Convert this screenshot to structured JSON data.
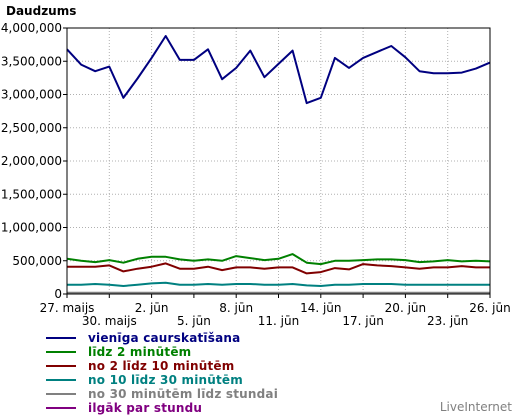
{
  "chart_data": {
    "type": "line",
    "title": "Daudzums",
    "ylim": [
      0,
      4000000
    ],
    "y_ticks": [
      0,
      500000,
      1000000,
      1500000,
      2000000,
      2500000,
      3000000,
      3500000,
      4000000
    ],
    "y_tick_labels": [
      "0",
      "500,000",
      "1,000,000",
      "1,500,000",
      "2,000,000",
      "2,500,000",
      "3,000,000",
      "3,500,000",
      "4,000,000"
    ],
    "x": [
      "27. maijs",
      "28. maijs",
      "29. maijs",
      "30. maijs",
      "31. maijs",
      "1. jūn",
      "2. jūn",
      "3. jūn",
      "4. jūn",
      "5. jūn",
      "6. jūn",
      "7. jūn",
      "8. jūn",
      "9. jūn",
      "10. jūn",
      "11. jūn",
      "12. jūn",
      "13. jūn",
      "14. jūn",
      "15. jūn",
      "16. jūn",
      "17. jūn",
      "18. jūn",
      "19. jūn",
      "20. jūn",
      "21. jūn",
      "22. jūn",
      "23. jūn",
      "24. jūn",
      "25. jūn",
      "26. jūn"
    ],
    "x_tick_labels_row1": [
      {
        "index": 0,
        "label": "27. maijs"
      },
      {
        "index": 6,
        "label": "2. jūn"
      },
      {
        "index": 12,
        "label": "8. jūn"
      },
      {
        "index": 18,
        "label": "14. jūn"
      },
      {
        "index": 24,
        "label": "20. jūn"
      },
      {
        "index": 30,
        "label": "26. jūn"
      }
    ],
    "x_tick_labels_row2": [
      {
        "index": 3,
        "label": "30. maijs"
      },
      {
        "index": 9,
        "label": "5. jūn"
      },
      {
        "index": 15,
        "label": "11. jūn"
      },
      {
        "index": 21,
        "label": "17. jūn"
      },
      {
        "index": 27,
        "label": "23. jūn"
      }
    ],
    "grid": true,
    "legend_position": "bottom",
    "series": [
      {
        "name": "vienīga caurskatīšana",
        "color": "#000080",
        "values": [
          3680000,
          3450000,
          3350000,
          3420000,
          2950000,
          3240000,
          3550000,
          3880000,
          3520000,
          3520000,
          3680000,
          3230000,
          3400000,
          3660000,
          3260000,
          3460000,
          3660000,
          2870000,
          2950000,
          3550000,
          3400000,
          3550000,
          3640000,
          3730000,
          3560000,
          3350000,
          3320000,
          3320000,
          3330000,
          3390000,
          3480000
        ]
      },
      {
        "name": "līdz 2 minūtēm",
        "color": "#008000",
        "values": [
          530000,
          500000,
          480000,
          510000,
          470000,
          530000,
          560000,
          560000,
          520000,
          500000,
          520000,
          500000,
          570000,
          540000,
          510000,
          530000,
          600000,
          470000,
          450000,
          500000,
          500000,
          510000,
          520000,
          520000,
          510000,
          480000,
          490000,
          510000,
          490000,
          500000,
          490000
        ]
      },
      {
        "name": "no 2 līdz 10 minūtēm",
        "color": "#800000",
        "values": [
          410000,
          410000,
          410000,
          430000,
          340000,
          380000,
          410000,
          460000,
          380000,
          380000,
          410000,
          360000,
          400000,
          400000,
          380000,
          400000,
          400000,
          310000,
          330000,
          390000,
          370000,
          450000,
          430000,
          420000,
          400000,
          380000,
          400000,
          400000,
          420000,
          400000,
          400000
        ]
      },
      {
        "name": "no 10 līdz 30 minūtēm",
        "color": "#008080",
        "values": [
          140000,
          140000,
          150000,
          140000,
          120000,
          140000,
          160000,
          170000,
          140000,
          140000,
          150000,
          140000,
          150000,
          150000,
          140000,
          140000,
          150000,
          130000,
          120000,
          140000,
          140000,
          150000,
          150000,
          150000,
          140000,
          140000,
          140000,
          140000,
          140000,
          140000,
          140000
        ]
      },
      {
        "name": "no 30 minūtēm līdz stundai",
        "color": "#808080",
        "values": [
          20000,
          20000,
          20000,
          20000,
          20000,
          20000,
          20000,
          20000,
          20000,
          20000,
          20000,
          20000,
          20000,
          20000,
          20000,
          20000,
          20000,
          20000,
          20000,
          20000,
          20000,
          20000,
          20000,
          20000,
          20000,
          20000,
          20000,
          20000,
          20000,
          20000,
          20000
        ]
      },
      {
        "name": "ilgāk par stundu",
        "color": "#800080",
        "values": [
          8000,
          8000,
          8000,
          8000,
          8000,
          8000,
          8000,
          8000,
          8000,
          8000,
          8000,
          8000,
          8000,
          8000,
          8000,
          8000,
          8000,
          8000,
          8000,
          8000,
          8000,
          8000,
          8000,
          8000,
          8000,
          8000,
          8000,
          8000,
          8000,
          8000,
          8000
        ]
      }
    ]
  },
  "watermark": "LiveInternet"
}
